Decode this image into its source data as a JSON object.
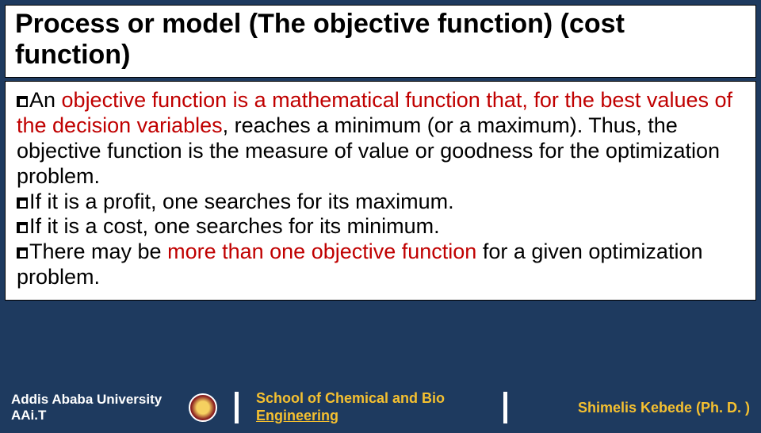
{
  "title": "Process or model (The objective function) (cost function)",
  "bullets": {
    "b1_pre": "An ",
    "b1_red": "objective  function is a mathematical function that, for the best values of the decision variables",
    "b1_post": ", reaches a minimum (or a maximum). Thus, the objective function is the measure of value or goodness for the optimization problem.",
    "b2": "If it is a profit, one searches for its maximum.",
    "b3": "If it is a cost, one searches for its minimum.",
    "b4_pre": "There may be ",
    "b4_red": "more than one objective function ",
    "b4_post": "for a given optimization problem."
  },
  "footer": {
    "uni_line1": "Addis Ababa University",
    "uni_line2": "AAi.T",
    "school_line1": "School of Chemical and Bio",
    "school_line2": "Engineering",
    "author": "Shimelis Kebede (Ph. D. )"
  },
  "colors": {
    "background": "#1e3a5f",
    "panel": "#ffffff",
    "highlight": "#c00000",
    "footer_accent": "#f5c030"
  }
}
